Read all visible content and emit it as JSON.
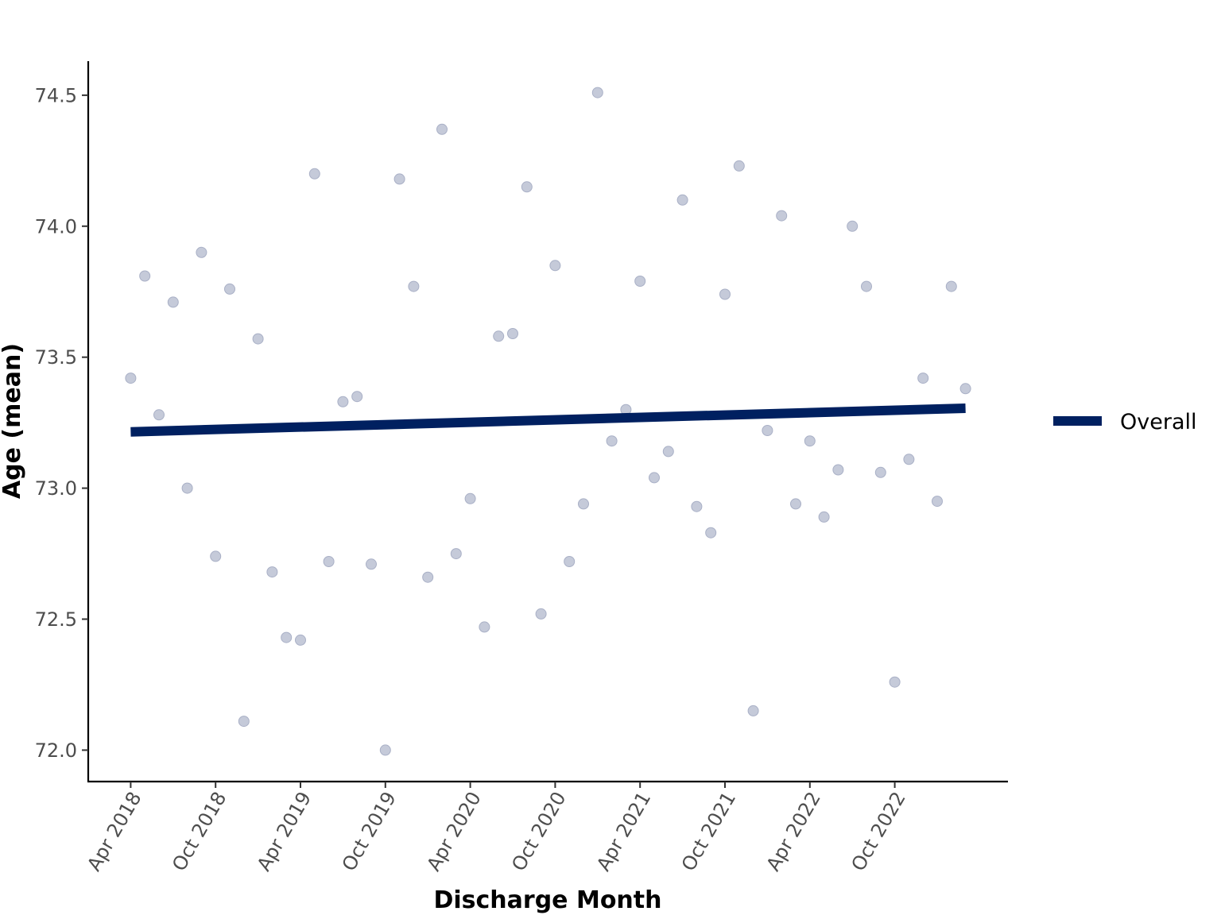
{
  "chart_data": {
    "type": "scatter",
    "xlabel": "Discharge Month",
    "ylabel": "Age (mean)",
    "x_ticks": [
      "Apr 2018",
      "Oct 2018",
      "Apr 2019",
      "Oct 2019",
      "Apr 2020",
      "Oct 2020",
      "Apr 2021",
      "Oct 2021",
      "Apr 2022",
      "Oct 2022"
    ],
    "y_ticks": [
      "72.0",
      "72.5",
      "73.0",
      "73.5",
      "74.0",
      "74.5"
    ],
    "ylim": [
      71.88,
      74.63
    ],
    "xlim": [
      "2018-01",
      "2023-06"
    ],
    "grid": false,
    "legend_position": "right",
    "colors": {
      "points": "#c5cad9",
      "point_edge": "#a9b0c6",
      "trend": "#002060"
    },
    "series": [
      {
        "type": "scatter",
        "points": [
          {
            "x": "2018-04",
            "y": 73.42
          },
          {
            "x": "2018-05",
            "y": 73.81
          },
          {
            "x": "2018-06",
            "y": 73.28
          },
          {
            "x": "2018-07",
            "y": 73.71
          },
          {
            "x": "2018-08",
            "y": 73.0
          },
          {
            "x": "2018-09",
            "y": 73.9
          },
          {
            "x": "2018-10",
            "y": 72.74
          },
          {
            "x": "2018-11",
            "y": 73.76
          },
          {
            "x": "2018-12",
            "y": 72.11
          },
          {
            "x": "2019-01",
            "y": 73.57
          },
          {
            "x": "2019-02",
            "y": 72.68
          },
          {
            "x": "2019-03",
            "y": 72.43
          },
          {
            "x": "2019-04",
            "y": 72.42
          },
          {
            "x": "2019-05",
            "y": 74.2
          },
          {
            "x": "2019-06",
            "y": 72.72
          },
          {
            "x": "2019-07",
            "y": 73.33
          },
          {
            "x": "2019-08",
            "y": 73.35
          },
          {
            "x": "2019-09",
            "y": 72.71
          },
          {
            "x": "2019-10",
            "y": 72.0
          },
          {
            "x": "2019-11",
            "y": 74.18
          },
          {
            "x": "2019-12",
            "y": 73.77
          },
          {
            "x": "2020-01",
            "y": 72.66
          },
          {
            "x": "2020-02",
            "y": 74.37
          },
          {
            "x": "2020-03",
            "y": 72.75
          },
          {
            "x": "2020-04",
            "y": 72.96
          },
          {
            "x": "2020-05",
            "y": 72.47
          },
          {
            "x": "2020-06",
            "y": 73.58
          },
          {
            "x": "2020-07",
            "y": 73.59
          },
          {
            "x": "2020-08",
            "y": 74.15
          },
          {
            "x": "2020-09",
            "y": 72.52
          },
          {
            "x": "2020-10",
            "y": 73.85
          },
          {
            "x": "2020-11",
            "y": 72.72
          },
          {
            "x": "2020-12",
            "y": 72.94
          },
          {
            "x": "2021-01",
            "y": 74.51
          },
          {
            "x": "2021-02",
            "y": 73.18
          },
          {
            "x": "2021-03",
            "y": 73.3
          },
          {
            "x": "2021-04",
            "y": 73.79
          },
          {
            "x": "2021-05",
            "y": 73.04
          },
          {
            "x": "2021-06",
            "y": 73.14
          },
          {
            "x": "2021-07",
            "y": 74.1
          },
          {
            "x": "2021-08",
            "y": 72.93
          },
          {
            "x": "2021-09",
            "y": 72.83
          },
          {
            "x": "2021-10",
            "y": 73.74
          },
          {
            "x": "2021-11",
            "y": 74.23
          },
          {
            "x": "2021-12",
            "y": 72.15
          },
          {
            "x": "2022-01",
            "y": 73.22
          },
          {
            "x": "2022-02",
            "y": 74.04
          },
          {
            "x": "2022-03",
            "y": 72.94
          },
          {
            "x": "2022-04",
            "y": 73.18
          },
          {
            "x": "2022-05",
            "y": 72.89
          },
          {
            "x": "2022-06",
            "y": 73.07
          },
          {
            "x": "2022-07",
            "y": 74.0
          },
          {
            "x": "2022-08",
            "y": 73.77
          },
          {
            "x": "2022-09",
            "y": 73.06
          },
          {
            "x": "2022-10",
            "y": 72.26
          },
          {
            "x": "2022-11",
            "y": 73.11
          },
          {
            "x": "2022-12",
            "y": 73.42
          },
          {
            "x": "2023-01",
            "y": 72.95
          },
          {
            "x": "2023-02",
            "y": 73.77
          },
          {
            "x": "2023-03",
            "y": 73.38
          }
        ]
      },
      {
        "type": "line",
        "name": "Overall",
        "points": [
          {
            "x": "2018-04",
            "y": 73.215
          },
          {
            "x": "2023-03",
            "y": 73.305
          }
        ]
      }
    ]
  }
}
